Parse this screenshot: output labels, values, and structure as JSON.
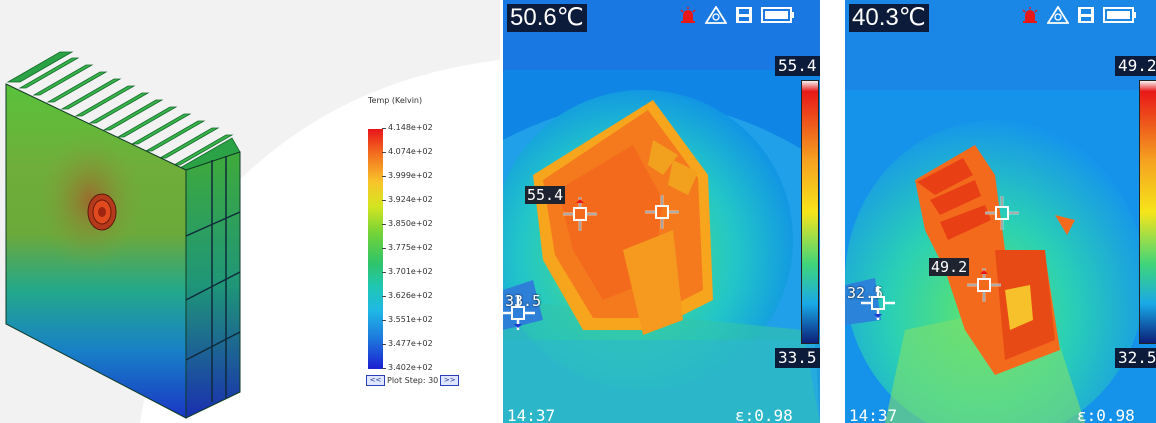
{
  "simulation": {
    "legend": {
      "title": "Temp (Kelvin)",
      "ticks": [
        "4.148e+02",
        "4.074e+02",
        "3.999e+02",
        "3.924e+02",
        "3.850e+02",
        "3.775e+02",
        "3.701e+02",
        "3.626e+02",
        "3.551e+02",
        "3.477e+02",
        "3.402e+02"
      ],
      "prev_label": "<<",
      "plot_step_label": "Plot Step: 30",
      "next_label": ">>"
    }
  },
  "thermal_1": {
    "current_temp": "50.6℃",
    "scale_max": "55.4",
    "scale_min": "33.5",
    "hot_marker": "55.4",
    "cold_marker": "33.5",
    "time": "14:37",
    "emissivity": "ε:0.98"
  },
  "thermal_2": {
    "current_temp": "40.3℃",
    "scale_max": "49.2",
    "scale_min": "32.5",
    "hot_marker": "49.2",
    "cold_marker": "32.5",
    "time": "14:37",
    "emissivity": "ε:0.98"
  },
  "colors": {
    "hot_marker": "#e81818",
    "cold_marker": "#1d3ad8",
    "readout_bg": "#0d1b3a"
  },
  "icons": [
    "alarm-icon",
    "camera-mode-icon",
    "sd-card-icon",
    "battery-icon",
    "crosshair-icon"
  ]
}
